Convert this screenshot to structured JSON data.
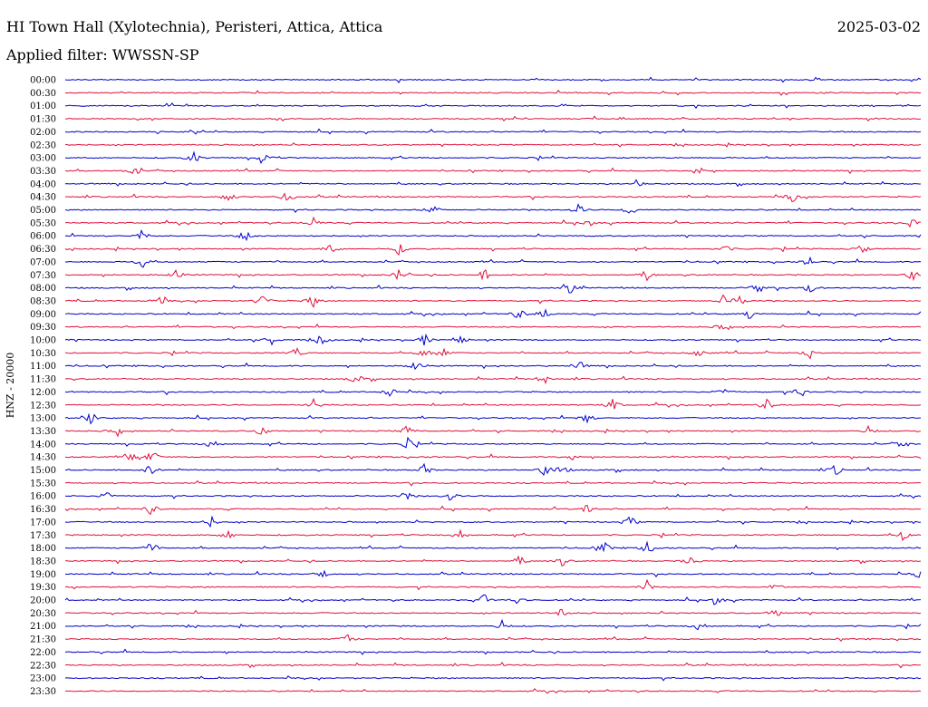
{
  "header": {
    "title": "HI Town Hall (Xylotechnia), Peristeri, Attica, Attica",
    "date": "2025-03-02",
    "filter": "Applied filter: WWSSN-SP"
  },
  "chart_data": {
    "type": "line",
    "ylabel": "HNZ - 20000",
    "colors": [
      "#0000cc",
      "#e0103c"
    ],
    "rows": [
      "00:00",
      "00:30",
      "01:00",
      "01:30",
      "02:00",
      "02:30",
      "03:00",
      "03:30",
      "04:00",
      "04:30",
      "05:00",
      "05:30",
      "06:00",
      "06:30",
      "07:00",
      "07:30",
      "08:00",
      "08:30",
      "09:00",
      "09:30",
      "10:00",
      "10:30",
      "11:00",
      "11:30",
      "12:00",
      "12:30",
      "13:00",
      "13:30",
      "14:00",
      "14:30",
      "15:00",
      "15:30",
      "16:00",
      "16:30",
      "17:00",
      "17:30",
      "18:00",
      "18:30",
      "19:00",
      "19:30",
      "20:00",
      "20:30",
      "21:00",
      "21:30",
      "22:00",
      "22:30",
      "23:00",
      "23:30"
    ],
    "events": [
      [],
      [],
      [],
      [],
      [],
      [],
      [
        0.15,
        0.23
      ],
      [
        0.08,
        0.74
      ],
      [
        0.67
      ],
      [
        0.19,
        0.26,
        0.85
      ],
      [
        0.43,
        0.6,
        0.66
      ],
      [
        0.29,
        0.61,
        0.99
      ],
      [
        0.09,
        0.21
      ],
      [
        0.31,
        0.39,
        0.77,
        0.93
      ],
      [
        0.09,
        0.87
      ],
      [
        0.13,
        0.39,
        0.49,
        0.68,
        0.99
      ],
      [
        0.59,
        0.81,
        0.87
      ],
      [
        0.11,
        0.23,
        0.29,
        0.77,
        0.79
      ],
      [
        0.53,
        0.56,
        0.8
      ],
      [
        0.77
      ],
      [
        0.24,
        0.3,
        0.42,
        0.46
      ],
      [
        0.27,
        0.42,
        0.44,
        0.74,
        0.87
      ],
      [
        0.41,
        0.6
      ],
      [
        0.34,
        0.56
      ],
      [
        0.38,
        0.77,
        0.86
      ],
      [
        0.29,
        0.64,
        0.82
      ],
      [
        0.03,
        0.61
      ],
      [
        0.06,
        0.23,
        0.4,
        0.94
      ],
      [
        0.17,
        0.4,
        0.98
      ],
      [
        0.08,
        0.1,
        0.59
      ],
      [
        0.1,
        0.42,
        0.56,
        0.58,
        0.9
      ],
      [],
      [
        0.05,
        0.4,
        0.45
      ],
      [
        0.1,
        0.61
      ],
      [
        0.17,
        0.66
      ],
      [
        0.19,
        0.46,
        0.98
      ],
      [
        0.1,
        0.63,
        0.68
      ],
      [
        0.53,
        0.58,
        0.73
      ],
      [
        0.3,
        1.0
      ],
      [
        0.68,
        0.83
      ],
      [
        0.49,
        0.53,
        0.76
      ],
      [
        0.58,
        0.83
      ],
      [
        0.51,
        0.74
      ],
      [
        0.33
      ],
      [],
      [],
      [],
      []
    ]
  }
}
